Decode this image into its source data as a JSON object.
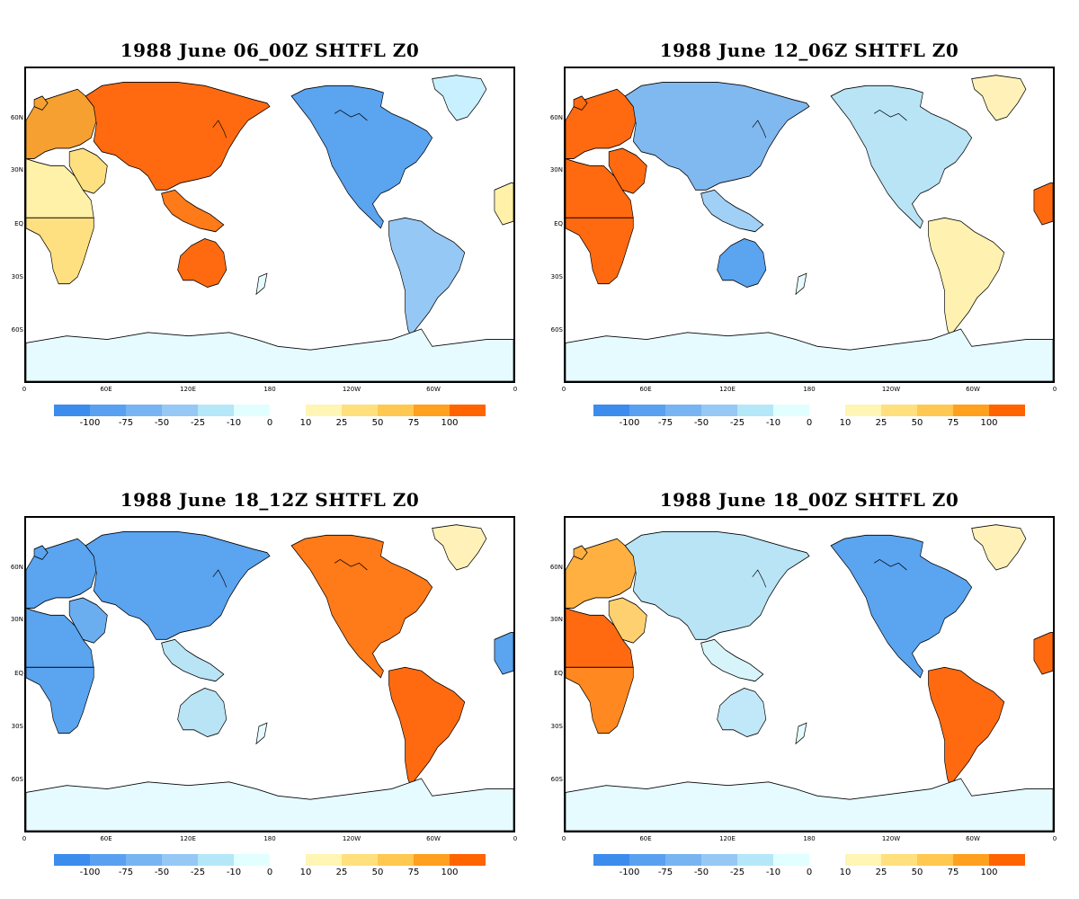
{
  "panels": [
    {
      "title": "1988 June 06_00Z SHTFL Z0",
      "regions": {
        "europe": "#f5a030",
        "asia": "#ff6a10",
        "africa_north": "#fff1a8",
        "africa_south": "#ffe080",
        "arabia": "#ffe080",
        "australia": "#ff6a10",
        "seasia": "#ff7a18",
        "north_america": "#5aa4f0",
        "greenland": "#c8f0ff",
        "south_america": "#96c8f5",
        "antarctica": "#e6fbff"
      }
    },
    {
      "title": "1988 June 12_06Z SHTFL Z0",
      "regions": {
        "europe": "#ff6a10",
        "asia": "#80b8f0",
        "africa_north": "#ff6a10",
        "africa_south": "#ff6a10",
        "arabia": "#ff6a10",
        "australia": "#5aa4f0",
        "seasia": "#a0d0f5",
        "north_america": "#b8e4f5",
        "greenland": "#fff1b8",
        "south_america": "#fff1b0",
        "antarctica": "#e6fbff"
      }
    },
    {
      "title": "1988 June 18_12Z SHTFL Z0",
      "regions": {
        "europe": "#5aa4f0",
        "asia": "#5aa4f0",
        "africa_north": "#5aa4f0",
        "africa_south": "#5aa4f0",
        "arabia": "#6aaef0",
        "australia": "#b8e4f5",
        "seasia": "#b8e4f5",
        "north_america": "#ff7a18",
        "greenland": "#fff1b8",
        "south_america": "#ff6a10",
        "antarctica": "#e6fbff"
      }
    },
    {
      "title": "1988 June 18_00Z SHTFL Z0",
      "regions": {
        "europe": "#ffb040",
        "asia": "#b8e4f5",
        "africa_north": "#ff6a10",
        "africa_south": "#ff8820",
        "arabia": "#ffd070",
        "australia": "#c0e8f8",
        "seasia": "#d8f4fb",
        "north_america": "#5aa4f0",
        "greenland": "#fff1b8",
        "south_america": "#ff6a10",
        "antarctica": "#e6fbff"
      }
    }
  ],
  "axes": {
    "lat_labels": [
      "60N",
      "30N",
      "EQ",
      "30S",
      "60S"
    ],
    "lon_labels": [
      "0",
      "60E",
      "120E",
      "180",
      "120W",
      "60W",
      "0"
    ]
  },
  "colorbar": {
    "negative_colors": [
      "#3c8ced",
      "#5aa0f0",
      "#78b4f2",
      "#96c8f5",
      "#b4e8f8",
      "#e1ffff"
    ],
    "positive_colors": [
      "#fff5b4",
      "#ffe07d",
      "#ffc850",
      "#ffa01e",
      "#ff6400"
    ],
    "negative_ticks": [
      "-100",
      "-75",
      "-50",
      "-25",
      "-10",
      "0"
    ],
    "positive_ticks": [
      "10",
      "25",
      "50",
      "75",
      "100"
    ]
  }
}
